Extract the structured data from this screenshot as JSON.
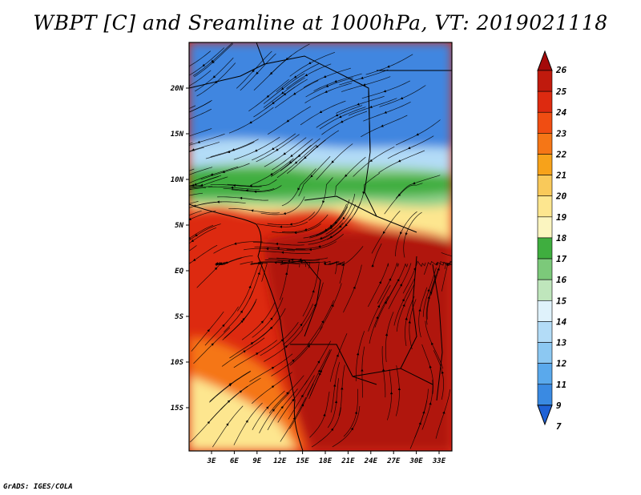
{
  "title": "WBPT [C] and Sreamline at 1000hPa, VT: 2019021118",
  "footer": "GrADS: IGES/COLA",
  "map": {
    "lat_ticks": [
      "20N",
      "15N",
      "10N",
      "5N",
      "EQ",
      "5S",
      "10S",
      "15S"
    ],
    "lon_ticks": [
      "3E",
      "6E",
      "9E",
      "12E",
      "15E",
      "18E",
      "21E",
      "24E",
      "27E",
      "30E",
      "33E"
    ]
  },
  "colorbar": {
    "labels": [
      "26",
      "25",
      "24",
      "23",
      "22",
      "21",
      "20",
      "19",
      "18",
      "17",
      "16",
      "15",
      "14",
      "13",
      "12",
      "11",
      "9",
      "7"
    ],
    "colors": [
      "#a50a0a",
      "#c01a0d",
      "#dd2a10",
      "#f04d12",
      "#f57616",
      "#f7a21a",
      "#f9c95a",
      "#fde68f",
      "#fbf5c0",
      "#3fae3f",
      "#7cc97a",
      "#bfe6bc",
      "#dff2fb",
      "#b3dcf7",
      "#8cc8f2",
      "#5aa9ec",
      "#3a8ae2",
      "#1f62d6"
    ]
  },
  "field_colors": {
    "cool_top": "#3f86e0",
    "light_blue": "#b3dcf7",
    "green": "#3fae3f",
    "light_green": "#8fd08a",
    "yellow": "#fde68f",
    "orange": "#f57616",
    "red": "#dd2a10",
    "dark_red": "#b01509"
  }
}
